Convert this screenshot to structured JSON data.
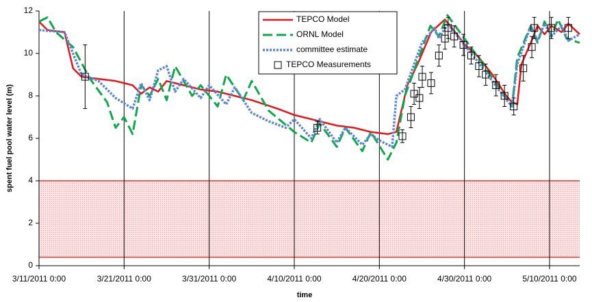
{
  "chart_data": {
    "type": "line",
    "xlabel": "time",
    "ylabel": "spent fuel pool water level (m)",
    "xlim": [
      "2011-03-11T00:00",
      "2011-05-13T13:00"
    ],
    "xticks": [
      {
        "value": "2011-03-11T00:00",
        "label": "3/11/2011 0:00"
      },
      {
        "value": "2011-03-21T00:00",
        "label": "3/21/2011 0:00"
      },
      {
        "value": "2011-03-31T00:00",
        "label": "3/31/2011 0:00"
      },
      {
        "value": "2011-04-10T00:00",
        "label": "4/10/2011 0:00"
      },
      {
        "value": "2011-04-20T00:00",
        "label": "4/20/2011 0:00"
      },
      {
        "value": "2011-04-30T00:00",
        "label": "4/30/2011 0:00"
      },
      {
        "value": "2011-05-10T00:00",
        "label": "5/10/2011 0:00"
      }
    ],
    "ylim": [
      0,
      12
    ],
    "yticks": [
      0,
      2,
      4,
      6,
      8,
      10,
      12
    ],
    "grid": "x",
    "legend": "top",
    "band": {
      "ymin": 0.4,
      "ymax": 4.0,
      "color": "#e53935"
    },
    "series": [
      {
        "name": "TEPCO Model",
        "color": "#e8141c",
        "style": "solid",
        "x": [
          "2011-03-11T00:00",
          "2011-03-12T00:00",
          "2011-03-14T00:00",
          "2011-03-15T00:00",
          "2011-03-16T00:00",
          "2011-03-20T00:00",
          "2011-03-22T00:00",
          "2011-03-23T00:00",
          "2011-03-24T00:00",
          "2011-03-25T00:00",
          "2011-03-26T00:00",
          "2011-03-28T00:00",
          "2011-03-30T00:00",
          "2011-04-01T00:00",
          "2011-04-03T00:00",
          "2011-04-05T00:00",
          "2011-04-08T00:00",
          "2011-04-10T00:00",
          "2011-04-13T00:00",
          "2011-04-15T00:00",
          "2011-04-17T00:00",
          "2011-04-19T00:00",
          "2011-04-21T00:00",
          "2011-04-22T00:00",
          "2011-04-23T07:00",
          "2011-04-24T12:00",
          "2011-04-26T02:00",
          "2011-04-27T17:00",
          "2011-04-28T22:00",
          "2011-04-30T02:00",
          "2011-05-01T17:00",
          "2011-05-03T07:00",
          "2011-05-04T22:00",
          "2011-05-05T14:00",
          "2011-05-06T05:00",
          "2011-05-06T17:00",
          "2011-05-07T19:00",
          "2011-05-08T14:00",
          "2011-05-09T10:00",
          "2011-05-10T05:00",
          "2011-05-11T10:00",
          "2011-05-12T05:00",
          "2011-05-13T13:00"
        ],
        "values": [
          11.5,
          11.1,
          11.0,
          9.3,
          8.9,
          8.7,
          8.5,
          8.1,
          8.4,
          8.2,
          8.7,
          8.5,
          8.3,
          8.2,
          8.0,
          7.8,
          7.4,
          7.1,
          6.8,
          6.6,
          6.5,
          6.3,
          6.2,
          6.3,
          8.5,
          9.5,
          11.0,
          11.6,
          11.0,
          10.4,
          9.8,
          9.0,
          8.0,
          7.7,
          7.6,
          9.5,
          10.5,
          11.3,
          10.9,
          11.3,
          11.0,
          11.4,
          10.9
        ]
      },
      {
        "name": "ORNL Model",
        "color": "#0ea84a",
        "style": "dashed",
        "x": [
          "2011-03-11T00:00",
          "2011-03-12T00:00",
          "2011-03-13T00:00",
          "2011-03-15T00:00",
          "2011-03-17T00:00",
          "2011-03-19T00:00",
          "2011-03-20T00:00",
          "2011-03-21T00:00",
          "2011-03-22T00:00",
          "2011-03-23T00:00",
          "2011-03-24T00:00",
          "2011-03-25T00:00",
          "2011-03-26T00:00",
          "2011-03-27T00:00",
          "2011-03-29T00:00",
          "2011-03-30T00:00",
          "2011-04-01T00:00",
          "2011-04-02T00:00",
          "2011-04-04T00:00",
          "2011-04-05T00:00",
          "2011-04-07T00:00",
          "2011-04-10T00:00",
          "2011-04-12T00:00",
          "2011-04-13T00:00",
          "2011-04-15T00:00",
          "2011-04-16T00:00",
          "2011-04-18T00:00",
          "2011-04-19T00:00",
          "2011-04-21T00:00",
          "2011-04-22T00:00",
          "2011-04-23T00:00",
          "2011-04-25T00:00",
          "2011-04-26T00:00",
          "2011-04-27T00:00",
          "2011-04-28T00:00",
          "2011-04-30T00:00",
          "2011-05-02T00:00",
          "2011-05-04T00:00",
          "2011-05-05T14:00",
          "2011-05-06T05:00",
          "2011-05-07T19:00",
          "2011-05-08T14:00",
          "2011-05-09T10:00",
          "2011-05-10T05:00",
          "2011-05-11T00:00",
          "2011-05-12T00:00",
          "2011-05-13T13:00"
        ],
        "values": [
          11.5,
          11.7,
          11.0,
          10.3,
          8.8,
          7.7,
          6.5,
          7.0,
          6.2,
          8.5,
          8.0,
          8.8,
          7.8,
          9.4,
          8.0,
          8.5,
          7.5,
          9.0,
          7.8,
          8.7,
          7.3,
          6.3,
          5.8,
          6.7,
          5.6,
          6.5,
          5.4,
          6.3,
          5.0,
          5.8,
          8.0,
          10.2,
          11.3,
          10.8,
          11.8,
          10.7,
          9.6,
          8.4,
          7.5,
          9.8,
          11.3,
          10.5,
          11.5,
          10.8,
          11.6,
          10.7,
          10.5
        ]
      },
      {
        "name": "committee estimate",
        "color": "#5b86d6",
        "style": "dotted",
        "x": [
          "2011-03-11T00:00",
          "2011-03-14T00:00",
          "2011-03-15T00:00",
          "2011-03-16T00:00",
          "2011-03-18T00:00",
          "2011-03-20T00:00",
          "2011-03-22T00:00",
          "2011-03-23T00:00",
          "2011-03-24T00:00",
          "2011-03-25T00:00",
          "2011-03-26T00:00",
          "2011-03-27T00:00",
          "2011-03-28T00:00",
          "2011-03-30T00:00",
          "2011-03-31T00:00",
          "2011-04-02T00:00",
          "2011-04-03T00:00",
          "2011-04-05T00:00",
          "2011-04-07T00:00",
          "2011-04-09T00:00",
          "2011-04-10T00:00",
          "2011-04-12T00:00",
          "2011-04-13T00:00",
          "2011-04-15T00:00",
          "2011-04-16T00:00",
          "2011-04-18T00:00",
          "2011-04-19T00:00",
          "2011-04-20T00:00",
          "2011-04-21T12:00",
          "2011-04-22T00:00",
          "2011-04-23T00:00",
          "2011-04-25T00:00",
          "2011-04-26T12:00",
          "2011-04-27T00:00",
          "2011-04-28T00:00",
          "2011-04-30T00:00",
          "2011-05-02T00:00",
          "2011-05-04T00:00",
          "2011-05-05T14:00",
          "2011-05-06T05:00",
          "2011-05-07T19:00",
          "2011-05-08T14:00",
          "2011-05-09T10:00",
          "2011-05-10T05:00",
          "2011-05-11T10:00",
          "2011-05-12T05:00",
          "2011-05-13T13:00"
        ],
        "values": [
          11.1,
          11.0,
          10.0,
          9.0,
          8.7,
          7.9,
          7.4,
          8.6,
          7.8,
          9.2,
          9.4,
          8.2,
          8.8,
          7.9,
          8.5,
          7.6,
          8.4,
          7.2,
          6.8,
          6.5,
          6.9,
          6.0,
          6.9,
          5.8,
          6.5,
          5.7,
          6.2,
          5.9,
          5.6,
          8.0,
          8.3,
          10.5,
          11.2,
          10.7,
          11.4,
          10.4,
          9.4,
          8.3,
          7.5,
          9.5,
          11.3,
          10.6,
          11.4,
          10.8,
          11.3,
          10.6,
          10.9
        ]
      },
      {
        "name": "TEPCO Measurements",
        "color": "#000000",
        "style": "marker",
        "x": [
          "2011-03-16T10:00",
          "2011-04-12T17:00",
          "2011-04-22T17:00",
          "2011-04-23T17:00",
          "2011-04-24T02:00",
          "2011-04-24T17:00",
          "2011-04-25T01:00",
          "2011-04-26T02:00",
          "2011-04-27T00:00",
          "2011-04-27T17:00",
          "2011-04-28T02:00",
          "2011-04-28T19:00",
          "2011-04-29T21:00",
          "2011-04-30T19:00",
          "2011-05-01T17:00",
          "2011-05-02T12:00",
          "2011-05-03T17:00",
          "2011-05-04T17:00",
          "2011-05-05T19:00",
          "2011-05-06T22:00",
          "2011-05-07T22:00",
          "2011-05-08T05:00",
          "2011-05-10T05:00",
          "2011-05-12T05:00"
        ],
        "values": [
          8.9,
          6.5,
          6.1,
          7.0,
          8.1,
          7.9,
          8.9,
          8.6,
          9.9,
          10.7,
          11.2,
          10.8,
          10.4,
          9.9,
          9.4,
          9.0,
          8.5,
          8.0,
          7.5,
          9.3,
          10.3,
          11.2,
          11.2,
          11.2
        ],
        "errors": [
          1.5,
          0.3,
          0.3,
          0.5,
          0.5,
          0.5,
          0.5,
          0.5,
          0.5,
          0.5,
          0.5,
          0.5,
          0.5,
          0.4,
          0.5,
          0.5,
          0.5,
          0.5,
          0.4,
          0.6,
          0.5,
          0.5,
          0.5,
          0.5
        ]
      }
    ]
  }
}
